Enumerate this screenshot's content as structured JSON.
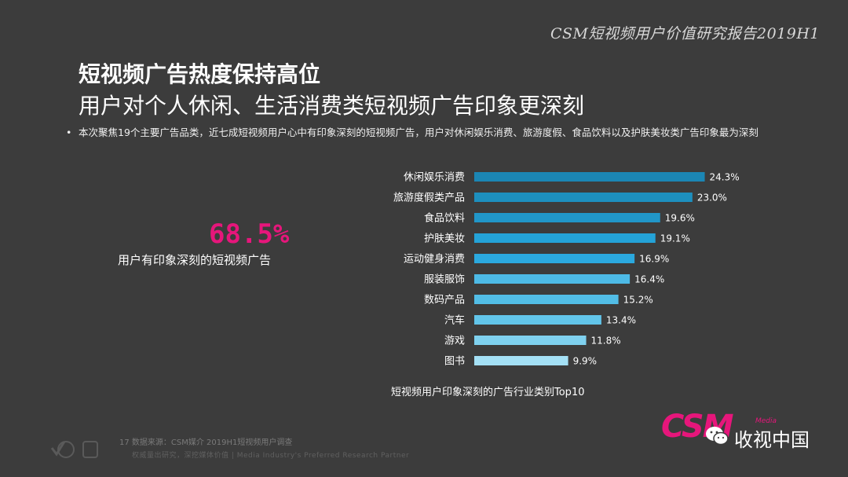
{
  "header": {
    "report_tag": "CSM短视频用户价值研究报告2019H1",
    "title_main": "短视频广告热度保持高位",
    "title_sub": "用户对个人休闲、生活消费类短视频广告印象更深刻"
  },
  "bullet": {
    "dot": "•",
    "text": "本次聚焦19个主要广告品类，近七成短视频用户心中有印象深刻的短视频广告，用户对休闲娱乐消费、旅游度假、食品饮料以及护肤美妆类广告印象最为深刻"
  },
  "highlight": {
    "value": "68.5%",
    "label": "用户有印象深刻的短视频广告",
    "color": "#e6167b"
  },
  "chart_data": {
    "type": "bar",
    "orientation": "horizontal",
    "title": "短视频用户印象深刻的广告行业类别Top10",
    "categories": [
      "休闲娱乐消费",
      "旅游度假类产品",
      "食品饮料",
      "护肤美妆",
      "运动健身消费",
      "服装服饰",
      "数码产品",
      "汽车",
      "游戏",
      "图书"
    ],
    "values": [
      24.3,
      23.0,
      19.6,
      19.1,
      16.9,
      16.4,
      15.2,
      13.4,
      11.8,
      9.9
    ],
    "value_labels": [
      "24.3%",
      "23.0%",
      "19.6%",
      "19.1%",
      "16.9%",
      "16.4%",
      "15.2%",
      "13.4%",
      "11.8%",
      "9.9%"
    ],
    "colors": [
      "#1b86b4",
      "#1d8fbe",
      "#2196c8",
      "#24a3d8",
      "#2ba9df",
      "#4dbae6",
      "#52bde6",
      "#62c5ea",
      "#7fd1ef",
      "#a4e0f5"
    ],
    "xlim": [
      0,
      25
    ],
    "grid": false,
    "legend": "none"
  },
  "footer": {
    "source": "17   数据来源：CSM媒介 2019H1短视频用户调查",
    "sub": "权威量出研究，深挖媒体价值 | Media Industry's Preferred Research Partner",
    "logo_name": "CSM",
    "logo_sub": "Media",
    "wechat_name": "收视中国"
  }
}
